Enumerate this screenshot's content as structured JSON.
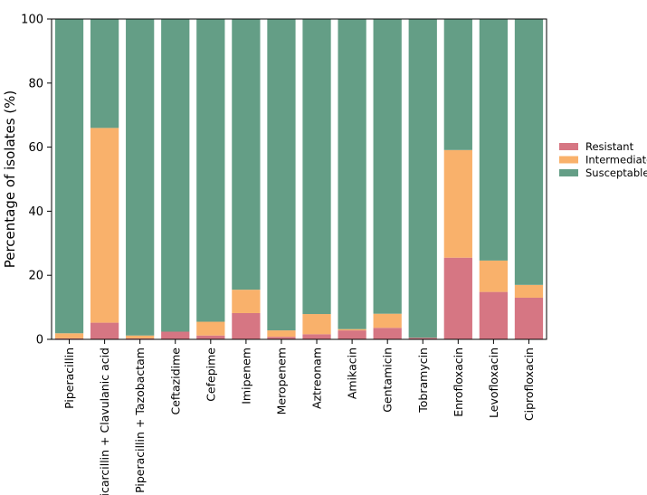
{
  "chart_data": {
    "type": "bar",
    "stacked": true,
    "title": "",
    "xlabel": "",
    "ylabel": "Percentage of isolates (%)",
    "ylim": [
      0,
      100
    ],
    "yticks": [
      0,
      20,
      40,
      60,
      80,
      100
    ],
    "legend_position": "right",
    "categories": [
      "Piperacillin",
      "Ticarcillin + Clavulanic acid",
      "Piperacillin + Tazobactam",
      "Ceftazidime",
      "Cefepime",
      "Imipenem",
      "Meropenem",
      "Aztreonam",
      "Amikacin",
      "Gentamicin",
      "Tobramycin",
      "Enrofloxacin",
      "Levofloxacin",
      "Ciprofloxacin"
    ],
    "series": [
      {
        "name": "Resistant",
        "color": "#d67683",
        "values": [
          0.3,
          5.2,
          0.3,
          2.4,
          1.2,
          8.2,
          0.8,
          1.6,
          2.8,
          3.6,
          0.5,
          25.5,
          14.8,
          13.0
        ]
      },
      {
        "name": "Intermediate",
        "color": "#f9b16b",
        "values": [
          1.6,
          60.8,
          0.9,
          0.0,
          4.3,
          7.3,
          2.0,
          6.3,
          0.4,
          4.4,
          0.0,
          33.6,
          9.8,
          4.0
        ]
      },
      {
        "name": "Susceptable",
        "color": "#649e86",
        "values": [
          98.1,
          34.0,
          98.8,
          97.6,
          94.5,
          84.5,
          97.2,
          92.1,
          96.8,
          92.0,
          99.5,
          40.9,
          75.4,
          83.0
        ]
      }
    ]
  }
}
